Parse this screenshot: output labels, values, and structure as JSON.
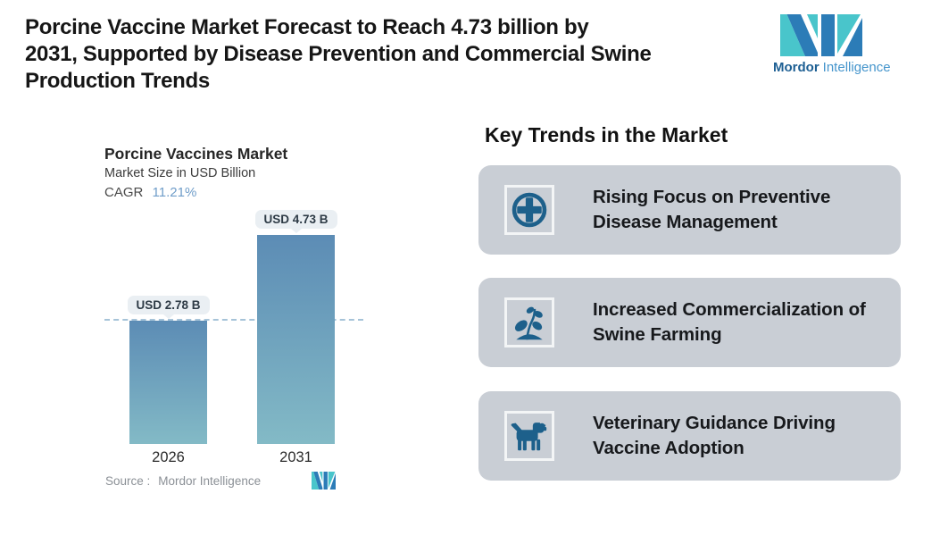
{
  "header": {
    "title_lines": [
      "Porcine Vaccine Market Forecast to Reach 4.73 billion by",
      "2031, Supported by Disease Prevention and Commercial Swine",
      "Production Trends"
    ],
    "brand": {
      "name_bold": "Mordor",
      "name_regular": "Intelligence"
    }
  },
  "chart": {
    "title": "Porcine Vaccines Market",
    "subtitle": "Market Size in USD Billion",
    "cagr_label": "CAGR",
    "cagr_value": "11.21%",
    "bars": [
      {
        "year": "2026",
        "label": "USD 2.78 B"
      },
      {
        "year": "2031",
        "label": "USD 4.73 B"
      }
    ],
    "source_prefix": "Source :",
    "source_name": "Mordor Intelligence"
  },
  "chart_data": {
    "type": "bar",
    "categories": [
      "2026",
      "2031"
    ],
    "values": [
      2.78,
      4.73
    ],
    "title": "Porcine Vaccines Market",
    "subtitle": "Market Size in USD Billion",
    "cagr_pct": 11.21,
    "data_labels": [
      "USD 2.78 B",
      "USD 4.73 B"
    ],
    "ylabel": "Market Size in USD Billion",
    "ylim": [
      0,
      4.73
    ],
    "reference_line": 2.78,
    "grid": false,
    "legend": false,
    "source": "Source : Mordor Intelligence"
  },
  "trends": {
    "heading": "Key Trends in the Market",
    "cards": [
      {
        "icon": "medical-cross-icon",
        "lines": [
          "Rising Focus on Preventive",
          "Disease Management"
        ]
      },
      {
        "icon": "seedling-icon",
        "lines": [
          "Increased Commercialization of",
          "Swine Farming"
        ]
      },
      {
        "icon": "dog-icon",
        "lines": [
          "Veterinary Guidance Driving",
          "Vaccine Adoption"
        ]
      }
    ]
  },
  "colors": {
    "bar_top": "#5c8cb5",
    "bar_bottom": "#83bac6",
    "dashed_line": "#a6c3d8",
    "cagr_value": "#6f9dc9",
    "card_bg": "#c9ced5",
    "icon": "#1d608b",
    "logo_teal": "#49c5cb",
    "logo_blue": "#2c7cb7"
  }
}
